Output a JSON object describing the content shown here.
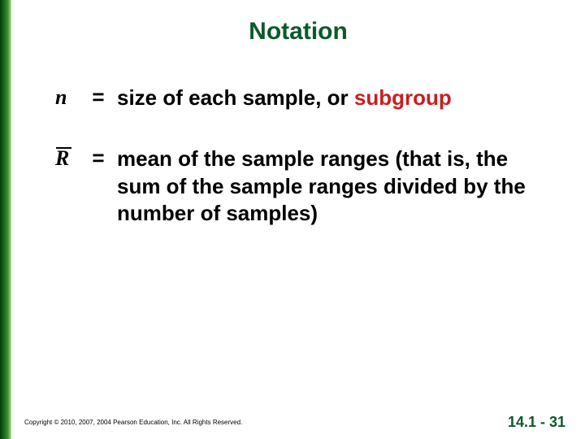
{
  "title": "Notation",
  "defs": [
    {
      "symbol": "n",
      "symbolClass": "italic",
      "equals": "=",
      "desc_pre": "size of each sample, or ",
      "highlight": "subgroup",
      "desc_post": ""
    },
    {
      "symbol": "R",
      "symbolClass": "rbar",
      "equals": "=",
      "desc_pre": "",
      "highlight": "",
      "desc_post": "mean of the sample ranges (that is, the sum of the sample ranges divided by the number of samples)"
    }
  ],
  "copyright": "Copyright © 2010, 2007, 2004 Pearson Education, Inc. All Rights Reserved.",
  "page": "14.1 - 31",
  "colors": {
    "titleColor": "#0a5a2a",
    "highlightColor": "#c62020",
    "textColor": "#000000",
    "background": "#ffffff"
  }
}
